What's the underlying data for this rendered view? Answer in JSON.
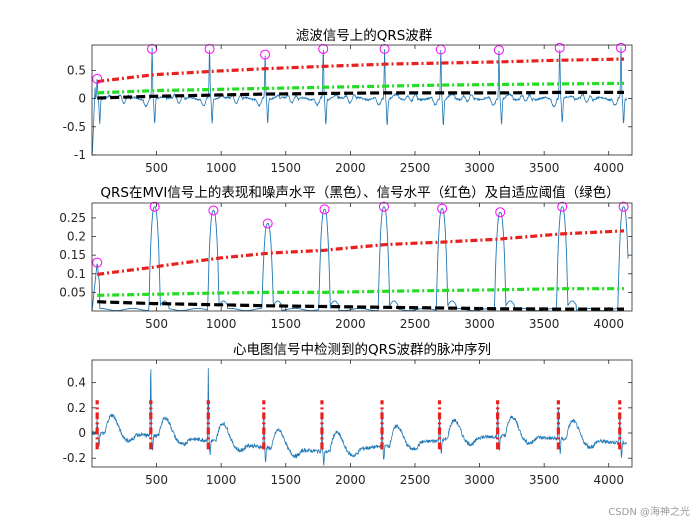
{
  "colors": {
    "signal": "#1f77b4",
    "signal_level": "#e8211f",
    "noise_level": "#000000",
    "threshold": "#22dd22",
    "peak_marker": "#ff00ff",
    "pulse": "#e8211f",
    "background": "#ffffff",
    "axis": "#262626"
  },
  "watermark": "CSDN @海神之光",
  "chart_data": [
    {
      "type": "line",
      "title": "滤波信号上的QRS波群",
      "xlim": [
        0,
        4180
      ],
      "ylim": [
        -1,
        0.95
      ],
      "x_ticks": [
        500,
        1000,
        1500,
        2000,
        2500,
        3000,
        3500,
        4000
      ],
      "y_ticks": [
        -1,
        -0.5,
        0,
        0.5
      ],
      "y_tick_labels": [
        "-1",
        "-0.5",
        "0",
        "0.5"
      ],
      "beats": [
        40,
        465,
        910,
        1340,
        1790,
        2265,
        2700,
        3150,
        3620,
        4095
      ],
      "peaks": [
        {
          "x": 40,
          "y": 0.35
        },
        {
          "x": 465,
          "y": 0.88
        },
        {
          "x": 910,
          "y": 0.88
        },
        {
          "x": 1340,
          "y": 0.78
        },
        {
          "x": 1790,
          "y": 0.88
        },
        {
          "x": 2265,
          "y": 0.88
        },
        {
          "x": 2700,
          "y": 0.87
        },
        {
          "x": 3150,
          "y": 0.86
        },
        {
          "x": 3620,
          "y": 0.9
        },
        {
          "x": 4095,
          "y": 0.9
        }
      ],
      "series": [
        {
          "name": "signal_level",
          "style": "dash-dot",
          "x": [
            40,
            465,
            910,
            1340,
            1790,
            2265,
            2700,
            3150,
            3620,
            4095
          ],
          "y": [
            0.3,
            0.42,
            0.48,
            0.53,
            0.57,
            0.61,
            0.63,
            0.65,
            0.68,
            0.7
          ]
        },
        {
          "name": "threshold",
          "style": "dash-dot",
          "x": [
            40,
            465,
            910,
            1340,
            1790,
            2265,
            2700,
            3150,
            3620,
            4095
          ],
          "y": [
            0.1,
            0.14,
            0.16,
            0.18,
            0.2,
            0.22,
            0.24,
            0.25,
            0.26,
            0.27
          ]
        },
        {
          "name": "noise_level",
          "style": "dash",
          "x": [
            40,
            465,
            910,
            1340,
            1790,
            2265,
            2700,
            3150,
            3620,
            4095
          ],
          "y": [
            0.01,
            0.04,
            0.06,
            0.08,
            0.09,
            0.1,
            0.1,
            0.1,
            0.11,
            0.11
          ]
        }
      ]
    },
    {
      "type": "line",
      "title": "QRS在MVI信号上的表现和噪声水平（黑色）、信号水平（红色）及自适应阈值（绿色）",
      "xlim": [
        0,
        4180
      ],
      "ylim": [
        0,
        0.29
      ],
      "x_ticks": [
        500,
        1000,
        1500,
        2000,
        2500,
        3000,
        3500,
        4000
      ],
      "y_ticks": [
        0.05,
        0.1,
        0.15,
        0.2,
        0.25
      ],
      "y_tick_labels": [
        "0.05",
        "0.1",
        "0.15",
        "0.2",
        "0.25"
      ],
      "beats": [
        40,
        485,
        940,
        1360,
        1800,
        2260,
        2710,
        3160,
        3640,
        4115
      ],
      "peaks": [
        {
          "x": 40,
          "y": 0.13
        },
        {
          "x": 485,
          "y": 0.28
        },
        {
          "x": 940,
          "y": 0.27
        },
        {
          "x": 1360,
          "y": 0.235
        },
        {
          "x": 1800,
          "y": 0.273
        },
        {
          "x": 2260,
          "y": 0.28
        },
        {
          "x": 2710,
          "y": 0.275
        },
        {
          "x": 3160,
          "y": 0.265
        },
        {
          "x": 3640,
          "y": 0.28
        },
        {
          "x": 4115,
          "y": 0.28
        }
      ],
      "series": [
        {
          "name": "signal_level",
          "style": "dash-dot",
          "x": [
            40,
            485,
            940,
            1360,
            1800,
            2260,
            2710,
            3160,
            3640,
            4115
          ],
          "y": [
            0.098,
            0.118,
            0.14,
            0.155,
            0.163,
            0.178,
            0.185,
            0.193,
            0.207,
            0.215
          ]
        },
        {
          "name": "threshold",
          "style": "dash-dot",
          "x": [
            40,
            485,
            940,
            1360,
            1800,
            2260,
            2710,
            3160,
            3640,
            4115
          ],
          "y": [
            0.042,
            0.045,
            0.048,
            0.05,
            0.05,
            0.053,
            0.055,
            0.057,
            0.06,
            0.06
          ]
        },
        {
          "name": "noise_level",
          "style": "dash",
          "x": [
            40,
            485,
            940,
            1360,
            1800,
            2260,
            2710,
            3160,
            3640,
            4115
          ],
          "y": [
            0.025,
            0.02,
            0.017,
            0.014,
            0.012,
            0.01,
            0.008,
            0.006,
            0.005,
            0.005
          ]
        }
      ]
    },
    {
      "type": "line",
      "title": "心电图信号中检测到的QRS波群的脉冲序列",
      "xlim": [
        0,
        4180
      ],
      "ylim": [
        -0.27,
        0.58
      ],
      "x_ticks": [
        500,
        1000,
        1500,
        2000,
        2500,
        3000,
        3500,
        4000
      ],
      "y_ticks": [
        -0.2,
        0,
        0.2,
        0.4
      ],
      "y_tick_labels": [
        "-0.2",
        "0",
        "0.2",
        "0.4"
      ],
      "beats": [
        40,
        455,
        900,
        1330,
        1780,
        2245,
        2690,
        3140,
        3610,
        4085
      ],
      "peak_amplitudes": [
        0.1,
        0.58,
        0.56,
        0.3,
        0.28,
        0.3,
        0.25,
        0.26,
        0.27,
        0.25
      ],
      "baseline": [
        0.0,
        -0.02,
        -0.06,
        -0.12,
        -0.15,
        -0.1,
        -0.05,
        -0.02,
        -0.05,
        -0.08
      ],
      "pulse_low": -0.13,
      "pulse_high": 0.26
    }
  ]
}
